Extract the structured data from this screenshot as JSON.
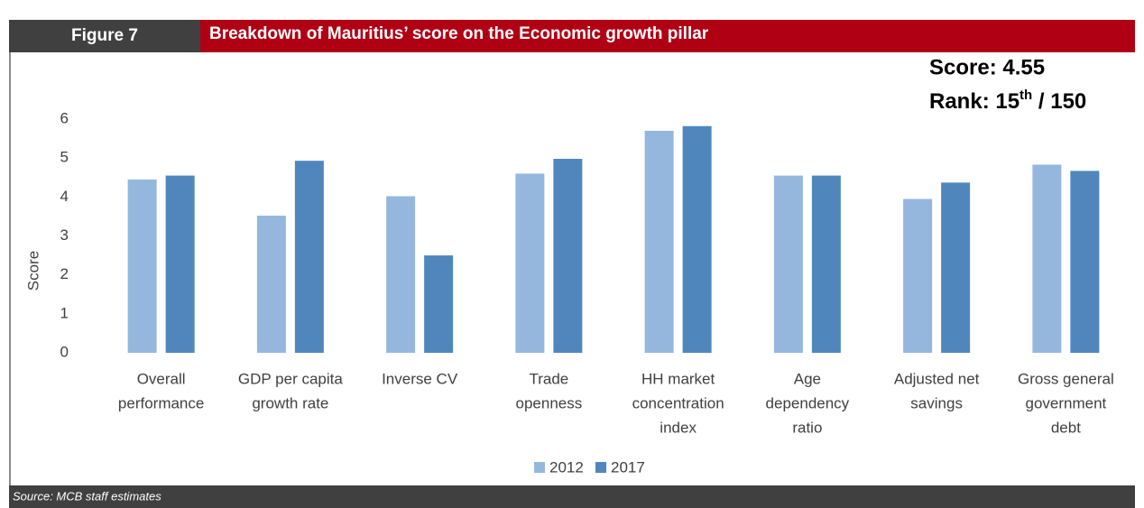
{
  "header": {
    "figure": "Figure 7",
    "title": "Breakdown of Mauritius’ score on the Economic growth pillar"
  },
  "annotations": {
    "score": "Score: 4.55",
    "rank": "Rank: 15",
    "rank_sup": "th",
    "rank_tail": " / 150"
  },
  "chart_data": {
    "type": "bar",
    "categories": [
      [
        "Overall",
        "performance"
      ],
      [
        "GDP per capita",
        "growth rate"
      ],
      [
        "Inverse CV"
      ],
      [
        "Trade",
        "openness"
      ],
      [
        "HH market",
        "concentration",
        "index"
      ],
      [
        "Age",
        "dependency",
        "ratio"
      ],
      [
        "Adjusted net",
        "savings"
      ],
      [
        "Gross general",
        "government",
        "debt"
      ]
    ],
    "series": [
      {
        "name": "2012",
        "color": "#95b7de",
        "values": [
          4.45,
          3.52,
          4.02,
          4.6,
          5.7,
          4.55,
          3.95,
          4.83
        ]
      },
      {
        "name": "2017",
        "color": "#4f87bd",
        "values": [
          4.55,
          4.93,
          2.5,
          4.98,
          5.82,
          4.55,
          4.37,
          4.67
        ]
      }
    ],
    "ylabel": "Score",
    "ylim": [
      0,
      6
    ],
    "yticks": [
      0,
      1,
      2,
      3,
      4,
      5,
      6
    ],
    "grid": false
  },
  "footer": {
    "source": "Source: MCB staff estimates"
  }
}
